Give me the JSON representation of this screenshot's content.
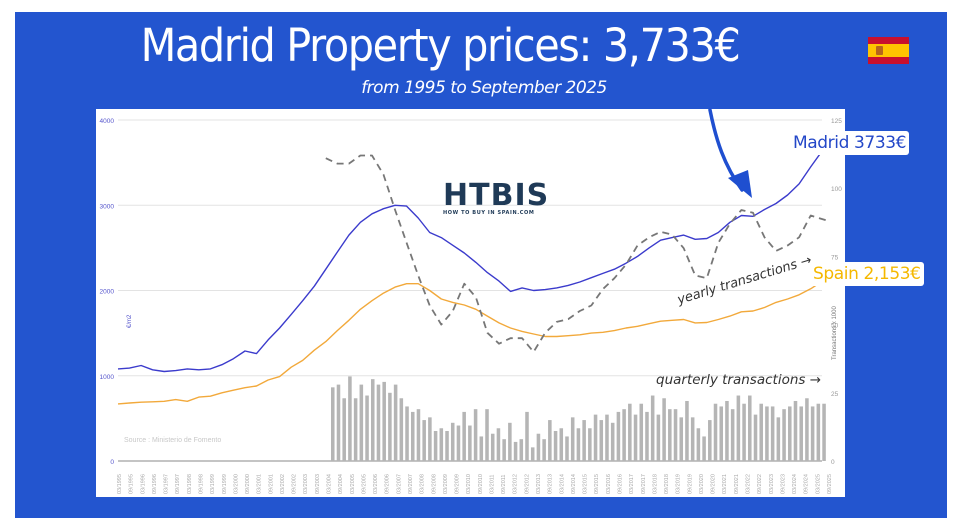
{
  "header": {
    "title": "Madrid Property prices: 3,733€",
    "subtitle": "from 1995 to September 2025",
    "flag": "spain-flag-icon"
  },
  "logo": {
    "name": "HTBIS",
    "tagline": "HOW TO BUY IN SPAIN.COM"
  },
  "annotations": {
    "madrid_label": "Madrid 3733€",
    "spain_label": "Spain 2,153€",
    "yearly_transactions": "yearly transactions →",
    "quarterly_transactions": "quarterly transactions →",
    "source": "Source : Ministerio de Fomento",
    "left_axis_title": "€/m2",
    "right_axis_title": "Transactions x 1000"
  },
  "colors": {
    "background_panel": "#2355cf",
    "madrid_line": "#3b3bcc",
    "spain_line": "#f2a93b",
    "yearly_dashed": "#777777",
    "quarterly_bars": "#b5b5b5",
    "madrid_label": "#2347c8",
    "spain_label": "#f5b800",
    "arrow": "#1f4fd0"
  },
  "chart_data": {
    "type": "line",
    "title": "Madrid Property prices: 3,733€",
    "subtitle": "from 1995 to September 2025",
    "xlabel": "",
    "ylabel": "€/m2",
    "y2label": "Transactions x 1000",
    "ylim": [
      0,
      4000
    ],
    "y2lim": [
      0,
      125
    ],
    "yticks": [
      0,
      1000,
      2000,
      3000,
      4000
    ],
    "y2ticks": [
      0,
      25,
      50,
      75,
      100,
      125
    ],
    "grid": true,
    "legend_position": "inline annotations",
    "x_tick_labels": [
      "03/1995",
      "09/1995",
      "03/1996",
      "09/1996",
      "03/1997",
      "09/1997",
      "03/1998",
      "09/1998",
      "03/1999",
      "09/1999",
      "03/2000",
      "09/2000",
      "03/2001",
      "09/2001",
      "03/2002",
      "09/2002",
      "03/2003",
      "09/2003",
      "03/2004",
      "09/2004",
      "03/2005",
      "09/2005",
      "03/2006",
      "09/2006",
      "03/2007",
      "09/2007",
      "03/2008",
      "09/2008",
      "03/2009",
      "09/2009",
      "03/2010",
      "09/2010",
      "03/2011",
      "09/2011",
      "03/2012",
      "09/2012",
      "03/2013",
      "09/2013",
      "03/2014",
      "09/2014",
      "03/2015",
      "09/2015",
      "03/2016",
      "09/2016",
      "03/2017",
      "09/2017",
      "03/2018",
      "09/2018",
      "03/2019",
      "09/2019",
      "03/2020",
      "09/2020",
      "03/2021",
      "09/2021",
      "03/2022",
      "09/2022",
      "03/2023",
      "09/2023",
      "03/2024",
      "09/2024",
      "03/2025",
      "09/2025"
    ],
    "series": [
      {
        "name": "Madrid (€/m2)",
        "axis": "left",
        "style": "solid",
        "x": [
          1995.0,
          1995.5,
          1996.0,
          1996.5,
          1997.0,
          1997.5,
          1998.0,
          1998.5,
          1999.0,
          1999.5,
          2000.0,
          2000.5,
          2001.0,
          2001.5,
          2002.0,
          2002.5,
          2003.0,
          2003.5,
          2004.0,
          2004.5,
          2005.0,
          2005.5,
          2006.0,
          2006.5,
          2007.0,
          2007.5,
          2008.0,
          2008.5,
          2009.0,
          2009.5,
          2010.0,
          2010.5,
          2011.0,
          2011.5,
          2012.0,
          2012.5,
          2013.0,
          2013.5,
          2014.0,
          2014.5,
          2015.0,
          2015.5,
          2016.0,
          2016.5,
          2017.0,
          2017.5,
          2018.0,
          2018.5,
          2019.0,
          2019.5,
          2020.0,
          2020.5,
          2021.0,
          2021.5,
          2022.0,
          2022.5,
          2023.0,
          2023.5,
          2024.0,
          2024.5,
          2025.0,
          2025.75
        ],
        "values": [
          1080,
          1090,
          1120,
          1070,
          1050,
          1060,
          1080,
          1070,
          1080,
          1130,
          1200,
          1290,
          1260,
          1420,
          1560,
          1720,
          1880,
          2050,
          2250,
          2450,
          2650,
          2800,
          2900,
          2960,
          3000,
          2990,
          2850,
          2680,
          2620,
          2530,
          2440,
          2330,
          2210,
          2110,
          1990,
          2030,
          2000,
          2010,
          2030,
          2060,
          2100,
          2150,
          2200,
          2250,
          2320,
          2400,
          2500,
          2590,
          2620,
          2650,
          2600,
          2610,
          2680,
          2800,
          2880,
          2870,
          2950,
          3020,
          3120,
          3250,
          3450,
          3733
        ]
      },
      {
        "name": "Spain (€/m2)",
        "axis": "left",
        "style": "solid",
        "x": [
          1995.0,
          1995.5,
          1996.0,
          1996.5,
          1997.0,
          1997.5,
          1998.0,
          1998.5,
          1999.0,
          1999.5,
          2000.0,
          2000.5,
          2001.0,
          2001.5,
          2002.0,
          2002.5,
          2003.0,
          2003.5,
          2004.0,
          2004.5,
          2005.0,
          2005.5,
          2006.0,
          2006.5,
          2007.0,
          2007.5,
          2008.0,
          2008.5,
          2009.0,
          2009.5,
          2010.0,
          2010.5,
          2011.0,
          2011.5,
          2012.0,
          2012.5,
          2013.0,
          2013.5,
          2014.0,
          2014.5,
          2015.0,
          2015.5,
          2016.0,
          2016.5,
          2017.0,
          2017.5,
          2018.0,
          2018.5,
          2019.0,
          2019.5,
          2020.0,
          2020.5,
          2021.0,
          2021.5,
          2022.0,
          2022.5,
          2023.0,
          2023.5,
          2024.0,
          2024.5,
          2025.0,
          2025.75
        ],
        "values": [
          670,
          680,
          690,
          695,
          700,
          720,
          700,
          750,
          760,
          800,
          830,
          860,
          880,
          950,
          990,
          1100,
          1180,
          1300,
          1400,
          1530,
          1650,
          1780,
          1880,
          1970,
          2040,
          2080,
          2080,
          2000,
          1900,
          1860,
          1830,
          1780,
          1700,
          1620,
          1560,
          1520,
          1490,
          1460,
          1460,
          1470,
          1480,
          1500,
          1510,
          1530,
          1560,
          1580,
          1610,
          1640,
          1650,
          1660,
          1620,
          1625,
          1660,
          1700,
          1750,
          1760,
          1800,
          1860,
          1900,
          1950,
          2020,
          2153
        ]
      },
      {
        "name": "Yearly transactions (x1000)",
        "axis": "right",
        "style": "dashed",
        "x": [
          2004.0,
          2004.5,
          2005.0,
          2005.5,
          2006.0,
          2006.5,
          2007.0,
          2007.5,
          2008.0,
          2008.5,
          2009.0,
          2009.5,
          2010.0,
          2010.5,
          2011.0,
          2011.5,
          2012.0,
          2012.5,
          2013.0,
          2013.5,
          2014.0,
          2014.5,
          2015.0,
          2015.5,
          2016.0,
          2016.5,
          2017.0,
          2017.5,
          2018.0,
          2018.5,
          2019.0,
          2019.5,
          2020.0,
          2020.5,
          2021.0,
          2021.5,
          2022.0,
          2022.5,
          2023.0,
          2023.5,
          2024.0,
          2024.5,
          2025.0,
          2025.75
        ],
        "values": [
          111,
          109,
          109,
          112,
          112,
          105,
          92,
          80,
          68,
          57,
          50,
          55,
          65,
          60,
          47,
          43,
          45,
          45,
          40,
          47,
          51,
          52,
          55,
          57,
          63,
          67,
          72,
          79,
          82,
          84,
          83,
          78,
          68,
          67,
          80,
          87,
          92,
          91,
          82,
          77,
          79,
          82,
          90,
          88
        ]
      },
      {
        "name": "Quarterly transactions (x1000)",
        "axis": "right",
        "type": "bar",
        "x_start": "Q1 2004",
        "x_end": "Q3 2025",
        "values": [
          27,
          28,
          23,
          31,
          23,
          28,
          24,
          30,
          28,
          29,
          25,
          28,
          23,
          20,
          18,
          19,
          15,
          16,
          11,
          12,
          11,
          14,
          13,
          18,
          13,
          19,
          9,
          19,
          10,
          12,
          8,
          14,
          7,
          8,
          18,
          5,
          10,
          8,
          15,
          11,
          12,
          9,
          16,
          12,
          15,
          12,
          17,
          15,
          17,
          14,
          18,
          19,
          21,
          17,
          21,
          18,
          24,
          17,
          23,
          19,
          19,
          16,
          22,
          16,
          12,
          9,
          15,
          21,
          20,
          22,
          19,
          24,
          21,
          24,
          17,
          21,
          20,
          20,
          16,
          19,
          20,
          22,
          20,
          23,
          20,
          21,
          21
        ]
      }
    ]
  }
}
